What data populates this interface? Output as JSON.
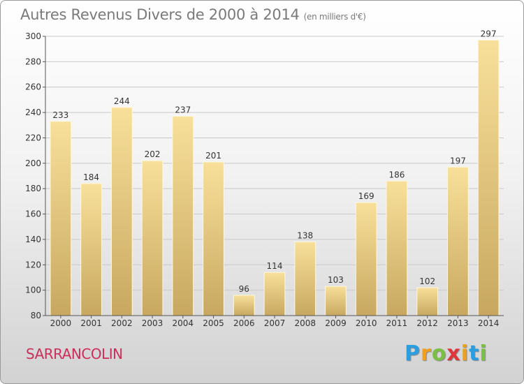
{
  "title": "Autres Revenus Divers de 2000 à 2014",
  "unit": "(en milliers d'€)",
  "commune": "SARRANCOLIN",
  "logo": {
    "letters": [
      "P",
      "r",
      "o",
      "x",
      "i",
      "t",
      "i"
    ],
    "colors": [
      "#2a9ee0",
      "#f0a020",
      "#7cc043",
      "#e0353a",
      "#f0a020",
      "#2a9ee0",
      "#7cc043"
    ]
  },
  "chart_data": {
    "type": "bar",
    "categories": [
      "2000",
      "2001",
      "2002",
      "2003",
      "2004",
      "2005",
      "2006",
      "2007",
      "2008",
      "2009",
      "2010",
      "2011",
      "2012",
      "2013",
      "2014"
    ],
    "values": [
      233,
      184,
      244,
      202,
      237,
      201,
      96,
      114,
      138,
      103,
      169,
      186,
      102,
      197,
      297
    ],
    "ylim": [
      80,
      300
    ],
    "yticks": [
      80,
      100,
      120,
      140,
      160,
      180,
      200,
      220,
      240,
      260,
      280,
      300
    ],
    "grid": true,
    "colors": {
      "bar_top": "#f8e09a",
      "bar_bottom": "#c8a860",
      "grid": "#c8c8c8"
    }
  }
}
